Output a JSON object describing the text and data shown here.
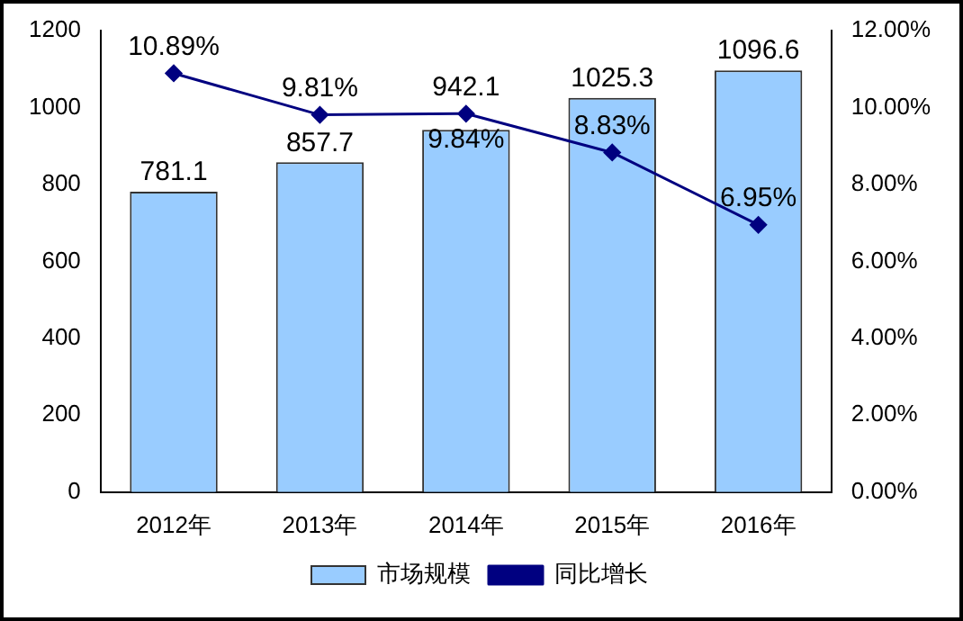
{
  "chart_data": {
    "type": "bar",
    "categories": [
      "2012年",
      "2013年",
      "2014年",
      "2015年",
      "2016年"
    ],
    "series": [
      {
        "name": "市场规模",
        "color": "#99ccff",
        "values": [
          781.1,
          857.7,
          942.1,
          1025.3,
          1096.6
        ],
        "value_labels": [
          "781.1",
          "857.7",
          "942.1",
          "1025.3",
          "1096.6"
        ]
      },
      {
        "name": "同比增长",
        "type": "line",
        "axis": "y2",
        "color": "#000080",
        "values": [
          10.89,
          9.81,
          9.84,
          8.83,
          6.95
        ],
        "value_labels": [
          "10.89%",
          "9.81%",
          "9.84%",
          "8.83%",
          "6.95%"
        ]
      }
    ],
    "ylim": [
      0,
      1200
    ],
    "yticks": [
      0,
      200,
      400,
      600,
      800,
      1000,
      1200
    ],
    "y2lim": [
      0,
      12
    ],
    "y2ticks": [
      {
        "value": 0,
        "label": "0.00%"
      },
      {
        "value": 2,
        "label": "2.00%"
      },
      {
        "value": 4,
        "label": "4.00%"
      },
      {
        "value": 6,
        "label": "6.00%"
      },
      {
        "value": 8,
        "label": "8.00%"
      },
      {
        "value": 10,
        "label": "10.00%"
      },
      {
        "value": 12,
        "label": "12.00%"
      }
    ],
    "grid": false,
    "legend": "bottom",
    "marker": "diamond",
    "line_style": "solid"
  }
}
